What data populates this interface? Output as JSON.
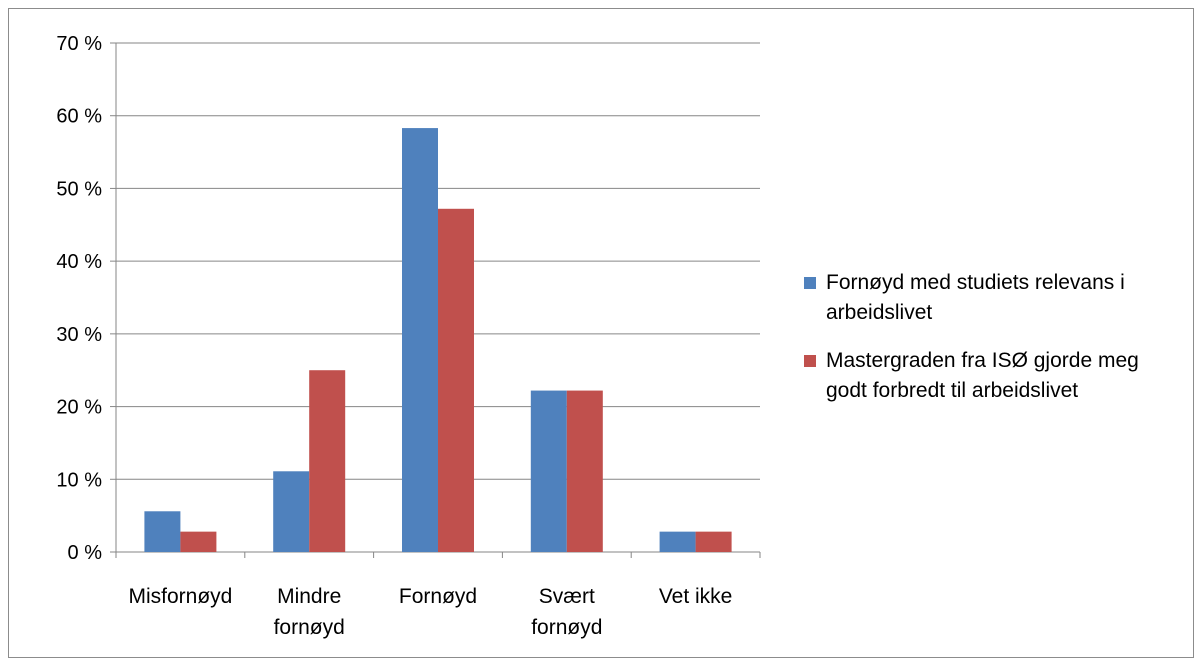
{
  "chart_data": {
    "type": "bar",
    "title": "",
    "xlabel": "",
    "ylabel": "",
    "ylim": [
      0,
      70
    ],
    "y_ticks": [
      "0 %",
      "10 %",
      "20 %",
      "30 %",
      "40 %",
      "50 %",
      "60 %",
      "70 %"
    ],
    "grid": true,
    "legend_position": "right",
    "categories": [
      [
        "Misfornøyd"
      ],
      [
        "Mindre",
        "fornøyd"
      ],
      [
        "Fornøyd"
      ],
      [
        "Svært",
        "fornøyd"
      ],
      [
        "Vet ikke"
      ]
    ],
    "series": [
      {
        "name": "Fornøyd med studiets relevans i arbeidslivet",
        "legend_lines": [
          "Fornøyd med studiets relevans i",
          "arbeidslivet"
        ],
        "color": "#4f81bd",
        "values": [
          5.6,
          11.1,
          58.3,
          22.2,
          2.8
        ]
      },
      {
        "name": "Mastergraden fra ISØ gjorde meg godt forbredt til arbeidslivet",
        "legend_lines": [
          "Mastergraden fra ISØ gjorde meg",
          "godt forbredt til arbeidslivet"
        ],
        "color": "#c0504d",
        "values": [
          2.8,
          25.0,
          47.2,
          22.2,
          2.8
        ]
      }
    ]
  }
}
